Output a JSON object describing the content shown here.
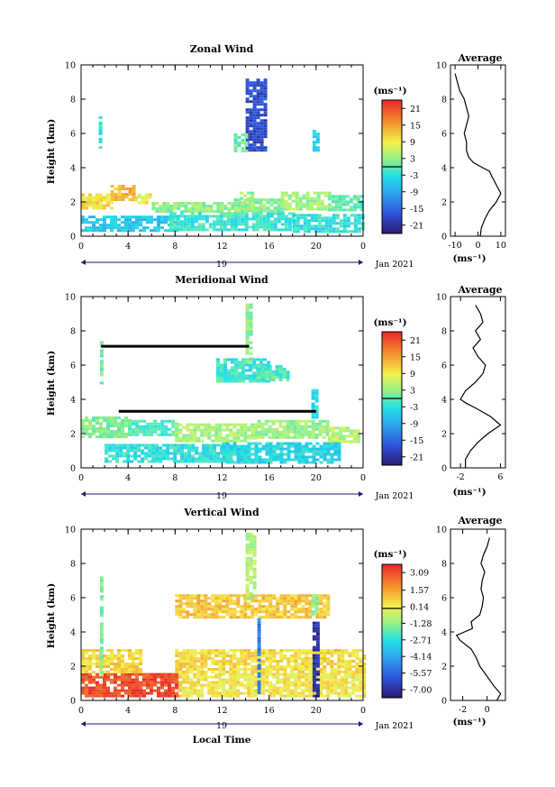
{
  "figure": {
    "xlabel": "Local Time",
    "date_label": "Jan 2021",
    "colorbar_unit": "(ms⁻¹)",
    "profile_unit": "(ms⁻¹)"
  },
  "chart_data": [
    {
      "type": "heatmap",
      "title": "Zonal Wind",
      "ylabel": "Height (km)",
      "xlabel": "",
      "x_ticks": [
        "0",
        "4",
        "8",
        "12",
        "16",
        "20",
        "0"
      ],
      "x_tick_values": [
        0,
        4,
        8,
        12,
        16,
        20,
        24
      ],
      "day_label": "19",
      "y_ticks": [
        "0",
        "2",
        "4",
        "6",
        "8",
        "10"
      ],
      "xlim": [
        0,
        24
      ],
      "ylim": [
        0,
        10
      ],
      "colorbar": {
        "ticks": [
          "21",
          "15",
          "9",
          "3",
          "-3",
          "-9",
          "-15",
          "-21"
        ],
        "values": [
          21,
          15,
          9,
          3,
          -3,
          -9,
          -15,
          -21
        ],
        "range": [
          -24,
          24
        ]
      },
      "blobs": [
        {
          "x": [
            0,
            2.5
          ],
          "y": [
            1.7,
            2.5
          ],
          "v": 10
        },
        {
          "x": [
            2.5,
            4.5
          ],
          "y": [
            2.2,
            3.0
          ],
          "v": 13
        },
        {
          "x": [
            4.5,
            6
          ],
          "y": [
            1.9,
            2.5
          ],
          "v": 9
        },
        {
          "x": [
            6,
            13
          ],
          "y": [
            1.4,
            2.0
          ],
          "v": 3
        },
        {
          "x": [
            13,
            17
          ],
          "y": [
            1.4,
            2.2
          ],
          "v": 2
        },
        {
          "x": [
            17,
            21
          ],
          "y": [
            1.5,
            2.6
          ],
          "v": 4
        },
        {
          "x": [
            21,
            24
          ],
          "y": [
            1.6,
            2.4
          ],
          "v": 0
        },
        {
          "x": [
            0,
            8
          ],
          "y": [
            0.4,
            1.2
          ],
          "v": -6
        },
        {
          "x": [
            7.5,
            18
          ],
          "y": [
            0.3,
            1.4
          ],
          "v": -2
        },
        {
          "x": [
            18,
            24
          ],
          "y": [
            0.3,
            1.3
          ],
          "v": -3
        },
        {
          "x": [
            1.5,
            1.8
          ],
          "y": [
            5.2,
            7.0
          ],
          "v": -2
        },
        {
          "x": [
            14,
            15.6
          ],
          "y": [
            5.0,
            9.2
          ],
          "v": -18
        },
        {
          "x": [
            13,
            14.2
          ],
          "y": [
            5.0,
            6.0
          ],
          "v": 1
        },
        {
          "x": [
            19.7,
            20.2
          ],
          "y": [
            5.0,
            6.2
          ],
          "v": -5
        },
        {
          "x": [
            13.5,
            14.6
          ],
          "y": [
            1.5,
            2.6
          ],
          "v": 3
        }
      ]
    },
    {
      "type": "heatmap",
      "title": "Meridional Wind",
      "ylabel": "Height (km)",
      "xlabel": "",
      "x_ticks": [
        "0",
        "4",
        "8",
        "12",
        "16",
        "20",
        "0"
      ],
      "x_tick_values": [
        0,
        4,
        8,
        12,
        16,
        20,
        24
      ],
      "day_label": "19",
      "y_ticks": [
        "0",
        "2",
        "4",
        "6",
        "8",
        "10"
      ],
      "xlim": [
        0,
        24
      ],
      "ylim": [
        0,
        10
      ],
      "colorbar": {
        "ticks": [
          "21",
          "15",
          "9",
          "3",
          "-3",
          "-9",
          "-15",
          "-21"
        ],
        "values": [
          21,
          15,
          9,
          3,
          -3,
          -9,
          -15,
          -21
        ],
        "range": [
          -24,
          24
        ]
      },
      "blobs": [
        {
          "x": [
            0,
            4
          ],
          "y": [
            1.8,
            3.0
          ],
          "v": 2
        },
        {
          "x": [
            4,
            8
          ],
          "y": [
            2.0,
            2.8
          ],
          "v": -1
        },
        {
          "x": [
            8,
            15
          ],
          "y": [
            1.6,
            2.6
          ],
          "v": 4
        },
        {
          "x": [
            15,
            21
          ],
          "y": [
            1.8,
            2.8
          ],
          "v": 3
        },
        {
          "x": [
            21,
            23.5
          ],
          "y": [
            1.6,
            2.4
          ],
          "v": 5
        },
        {
          "x": [
            2,
            13
          ],
          "y": [
            0.4,
            1.4
          ],
          "v": -3
        },
        {
          "x": [
            12,
            22
          ],
          "y": [
            0.3,
            1.5
          ],
          "v": -4
        },
        {
          "x": [
            11.5,
            16
          ],
          "y": [
            5.0,
            6.4
          ],
          "v": -2
        },
        {
          "x": [
            15,
            17.5
          ],
          "y": [
            5.2,
            6.0
          ],
          "v": -1
        },
        {
          "x": [
            14,
            14.6
          ],
          "y": [
            6.0,
            9.6
          ],
          "v": 2
        },
        {
          "x": [
            1.6,
            1.9
          ],
          "y": [
            5.0,
            7.4
          ],
          "v": 1
        },
        {
          "x": [
            19.6,
            20.2
          ],
          "y": [
            3.0,
            4.6
          ],
          "v": -4
        }
      ],
      "lines": [
        {
          "x": [
            1.7,
            14.3
          ],
          "y": [
            7.1,
            7.1
          ]
        },
        {
          "x": [
            3.2,
            20.0
          ],
          "y": [
            3.3,
            3.3
          ]
        }
      ]
    },
    {
      "type": "heatmap",
      "title": "Vertical Wind",
      "ylabel": "Height (km)",
      "xlabel": "Local Time",
      "x_ticks": [
        "0",
        "4",
        "8",
        "12",
        "16",
        "20",
        "0"
      ],
      "x_tick_values": [
        0,
        4,
        8,
        12,
        16,
        20,
        24
      ],
      "day_label": "19",
      "y_ticks": [
        "0",
        "2",
        "4",
        "6",
        "8",
        "10"
      ],
      "xlim": [
        0,
        24
      ],
      "ylim": [
        0,
        10
      ],
      "colorbar": {
        "ticks": [
          "3.09",
          "1.57",
          "0.14",
          "-1.28",
          "-2.71",
          "-4.14",
          "-5.57",
          "-7.00"
        ],
        "values": [
          3.09,
          1.57,
          0.14,
          -1.28,
          -2.71,
          -4.14,
          -5.57,
          -7.0
        ],
        "range": [
          -7.7,
          3.8
        ]
      },
      "blobs": [
        {
          "x": [
            0,
            8.3
          ],
          "y": [
            0.3,
            1.6
          ],
          "v": 3.1
        },
        {
          "x": [
            8.3,
            24
          ],
          "y": [
            0.2,
            1.6
          ],
          "v": 0.3
        },
        {
          "x": [
            0,
            5
          ],
          "y": [
            1.6,
            3.0
          ],
          "v": 0.6
        },
        {
          "x": [
            8,
            24
          ],
          "y": [
            1.6,
            3.0
          ],
          "v": 0.5
        },
        {
          "x": [
            8,
            21
          ],
          "y": [
            4.8,
            6.2
          ],
          "v": 0.9
        },
        {
          "x": [
            1.6,
            1.9
          ],
          "y": [
            1.5,
            7.4
          ],
          "v": -1.5
        },
        {
          "x": [
            14,
            14.8
          ],
          "y": [
            6.0,
            9.8
          ],
          "v": -0.8
        },
        {
          "x": [
            15.0,
            15.3
          ],
          "y": [
            0.4,
            4.8
          ],
          "v": -5.0
        },
        {
          "x": [
            19.7,
            20.3
          ],
          "y": [
            0.3,
            4.6
          ],
          "v": -7.0
        },
        {
          "x": [
            19.6,
            20.0
          ],
          "y": [
            5.0,
            6.2
          ],
          "v": -1.4
        }
      ]
    }
  ],
  "profiles": [
    {
      "title": "Average",
      "xlabel": "(ms⁻¹)",
      "x_ticks": [
        "-10",
        "0",
        "10"
      ],
      "x_tick_values": [
        -10,
        0,
        10
      ],
      "xlim": [
        -12,
        12
      ],
      "y_ticks": [
        "0",
        "2",
        "4",
        "6",
        "8",
        "10"
      ],
      "ylim": [
        0,
        10
      ],
      "y": [
        0,
        0.5,
        1,
        1.5,
        2,
        2.5,
        3,
        3.5,
        3.8,
        4.0,
        4.3,
        4.6,
        5.0,
        5.5,
        6.0,
        6.5,
        7.0,
        7.5,
        8.0,
        8.5,
        9.0,
        9.5
      ],
      "x": [
        1,
        1.5,
        3,
        5,
        8,
        10,
        8,
        6,
        5,
        2,
        -2,
        -4,
        -5,
        -5,
        -6,
        -5,
        -4,
        -5,
        -6,
        -8,
        -9,
        -10
      ]
    },
    {
      "title": "Average",
      "xlabel": "(ms⁻¹)",
      "x_ticks": [
        "-2",
        "6"
      ],
      "x_tick_values": [
        -2,
        6
      ],
      "xlim": [
        -4,
        7
      ],
      "y_ticks": [
        "0",
        "2",
        "4",
        "6",
        "8",
        "10"
      ],
      "ylim": [
        0,
        10
      ],
      "y": [
        0,
        0.5,
        1,
        1.5,
        2,
        2.5,
        3,
        3.5,
        3.8,
        4.0,
        4.5,
        5.0,
        5.5,
        6.0,
        6.5,
        7.0,
        7.5,
        8.0,
        8.5,
        9.0,
        9.5
      ],
      "x": [
        -1,
        -1,
        0,
        1.5,
        3.5,
        6,
        4,
        1,
        -1,
        -2,
        -1,
        1,
        2.5,
        3,
        1.5,
        0.5,
        2,
        1,
        2.5,
        2,
        1
      ]
    },
    {
      "title": "Average",
      "xlabel": "(ms⁻¹)",
      "x_ticks": [
        "-2",
        "0"
      ],
      "x_tick_values": [
        -2,
        0
      ],
      "xlim": [
        -3,
        1.5
      ],
      "y_ticks": [
        "0",
        "2",
        "4",
        "6",
        "8",
        "10"
      ],
      "ylim": [
        0,
        10
      ],
      "y": [
        0,
        0.4,
        0.8,
        1.2,
        1.6,
        2.0,
        2.5,
        3.0,
        3.5,
        3.8,
        4.2,
        4.6,
        5.0,
        5.5,
        6.0,
        6.5,
        7.0,
        7.5,
        8.0,
        8.5,
        9.0,
        9.5
      ],
      "x": [
        0.8,
        1.1,
        0.6,
        0.2,
        -0.2,
        -0.6,
        -0.9,
        -1.3,
        -2.2,
        -2.5,
        -1.2,
        -1.3,
        -0.6,
        -0.4,
        -0.3,
        -0.5,
        -0.4,
        -0.2,
        -0.5,
        -0.3,
        0,
        0.2
      ]
    }
  ]
}
